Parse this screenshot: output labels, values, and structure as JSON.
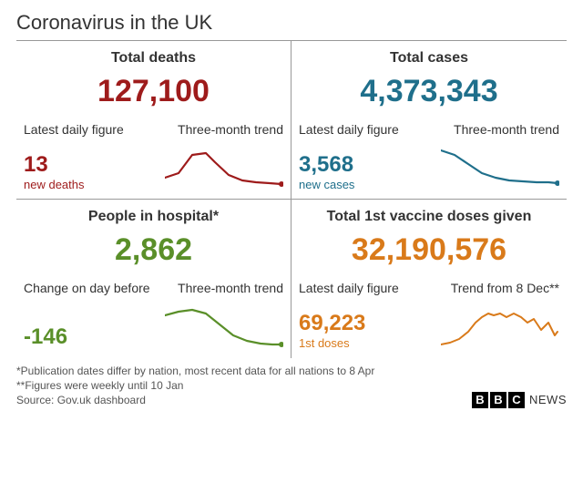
{
  "title": "Coronavirus in the UK",
  "panels": [
    {
      "title": "Total deaths",
      "big_number": "127,100",
      "color": "#9e1b1b",
      "sub_left": "Latest daily figure",
      "sub_right": "Three-month trend",
      "daily_number": "13",
      "daily_label": "new deaths",
      "spark": {
        "points": [
          [
            0,
            35
          ],
          [
            15,
            30
          ],
          [
            30,
            10
          ],
          [
            45,
            8
          ],
          [
            55,
            18
          ],
          [
            70,
            32
          ],
          [
            85,
            38
          ],
          [
            100,
            40
          ],
          [
            115,
            41
          ],
          [
            128,
            42
          ]
        ],
        "end_dot": true,
        "stroke_width": 2.2
      }
    },
    {
      "title": "Total cases",
      "big_number": "4,373,343",
      "color": "#1f6f8b",
      "sub_left": "Latest daily figure",
      "sub_right": "Three-month trend",
      "daily_number": "3,568",
      "daily_label": "new cases",
      "spark": {
        "points": [
          [
            0,
            5
          ],
          [
            15,
            10
          ],
          [
            30,
            20
          ],
          [
            45,
            30
          ],
          [
            60,
            35
          ],
          [
            75,
            38
          ],
          [
            90,
            39
          ],
          [
            105,
            40
          ],
          [
            118,
            40
          ],
          [
            128,
            41
          ]
        ],
        "end_dot": true,
        "stroke_width": 2.2
      }
    },
    {
      "title": "People in hospital*",
      "big_number": "2,862",
      "color": "#5a8f29",
      "sub_left": "Change on day before",
      "sub_right": "Three-month trend",
      "daily_number": "-146",
      "daily_label": "",
      "spark": {
        "points": [
          [
            0,
            12
          ],
          [
            15,
            8
          ],
          [
            30,
            6
          ],
          [
            45,
            10
          ],
          [
            60,
            22
          ],
          [
            75,
            34
          ],
          [
            90,
            40
          ],
          [
            105,
            43
          ],
          [
            118,
            44
          ],
          [
            128,
            44
          ]
        ],
        "end_dot": true,
        "stroke_width": 2.2
      }
    },
    {
      "title": "Total 1st vaccine doses given",
      "big_number": "32,190,576",
      "color": "#d97a1a",
      "sub_left": "Latest daily figure",
      "sub_right": "Trend from 8 Dec**",
      "daily_number": "69,223",
      "daily_label": "1st doses",
      "spark": {
        "points": [
          [
            0,
            44
          ],
          [
            10,
            42
          ],
          [
            20,
            38
          ],
          [
            30,
            30
          ],
          [
            38,
            20
          ],
          [
            45,
            14
          ],
          [
            52,
            10
          ],
          [
            58,
            12
          ],
          [
            65,
            10
          ],
          [
            72,
            14
          ],
          [
            80,
            10
          ],
          [
            88,
            14
          ],
          [
            95,
            20
          ],
          [
            102,
            16
          ],
          [
            110,
            28
          ],
          [
            118,
            20
          ],
          [
            125,
            34
          ],
          [
            128,
            30
          ]
        ],
        "end_dot": false,
        "stroke_width": 2.0
      }
    }
  ],
  "footnotes": {
    "line1": "*Publication dates differ by nation, most recent data for all nations to 8 Apr",
    "line2": "**Figures were weekly until 10 Jan",
    "line3": "Source: Gov.uk dashboard"
  },
  "logo": {
    "b1": "B",
    "b2": "B",
    "b3": "C",
    "news": "NEWS"
  }
}
